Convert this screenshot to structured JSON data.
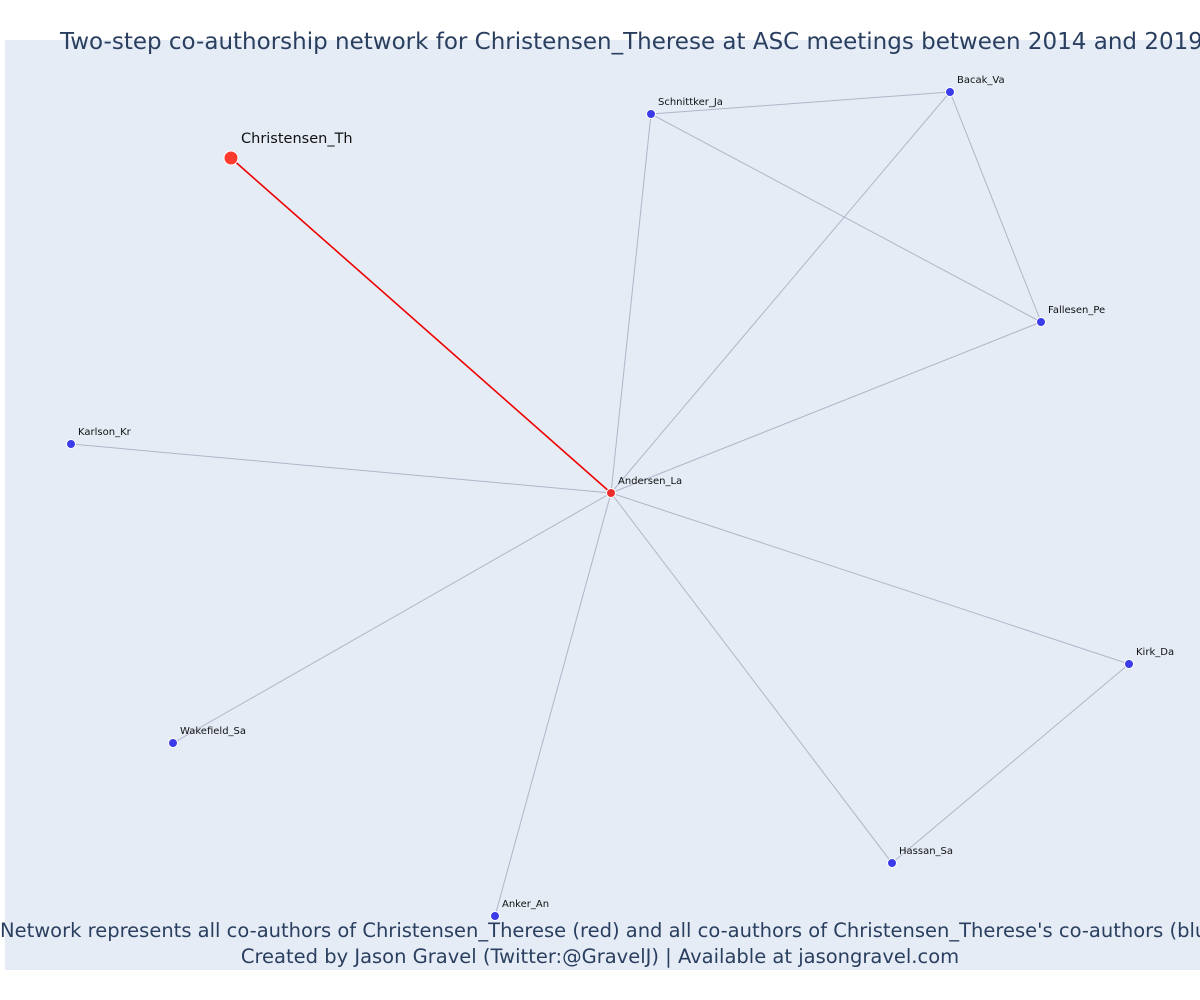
{
  "title": "Two-step co-authorship network for Christensen_Therese at ASC meetings between 2014 and 2019",
  "caption": {
    "line1": "Network represents all co-authors of Christensen_Therese (red) and all co-authors of Christensen_Therese's co-authors (blue)",
    "line2": "Created by Jason Gravel (Twitter:@GravelJ) | Available at jasongravel.com"
  },
  "colors": {
    "plot_background": "#e5ecf6",
    "focal_node": "#ff3b30",
    "first_degree_node": "#ee2d2d",
    "second_degree_node": "#3b3bea",
    "focal_edge": "#ee0000",
    "other_edge": "#b4b4c8",
    "text": "#2a3f5f"
  },
  "nodes": [
    {
      "id": "Christensen_Th",
      "label": "Christensen_Th",
      "group": "focal"
    },
    {
      "id": "Andersen_La",
      "label": "Andersen_La",
      "group": "first-degree"
    },
    {
      "id": "Schnittker_Ja",
      "label": "Schnittker_Ja",
      "group": "second-degree"
    },
    {
      "id": "Bacak_Va",
      "label": "Bacak_Va",
      "group": "second-degree"
    },
    {
      "id": "Fallesen_Pe",
      "label": "Fallesen_Pe",
      "group": "second-degree"
    },
    {
      "id": "Karlson_Kr",
      "label": "Karlson_Kr",
      "group": "second-degree"
    },
    {
      "id": "Kirk_Da",
      "label": "Kirk_Da",
      "group": "second-degree"
    },
    {
      "id": "Wakefield_Sa",
      "label": "Wakefield_Sa",
      "group": "second-degree"
    },
    {
      "id": "Hassan_Sa",
      "label": "Hassan_Sa",
      "group": "second-degree"
    },
    {
      "id": "Anker_An",
      "label": "Anker_An",
      "group": "second-degree"
    }
  ],
  "edges": [
    {
      "source": "Christensen_Th",
      "target": "Andersen_La",
      "type": "focal"
    },
    {
      "source": "Andersen_La",
      "target": "Schnittker_Ja",
      "type": "other"
    },
    {
      "source": "Andersen_La",
      "target": "Bacak_Va",
      "type": "other"
    },
    {
      "source": "Andersen_La",
      "target": "Fallesen_Pe",
      "type": "other"
    },
    {
      "source": "Andersen_La",
      "target": "Karlson_Kr",
      "type": "other"
    },
    {
      "source": "Andersen_La",
      "target": "Kirk_Da",
      "type": "other"
    },
    {
      "source": "Andersen_La",
      "target": "Wakefield_Sa",
      "type": "other"
    },
    {
      "source": "Andersen_La",
      "target": "Hassan_Sa",
      "type": "other"
    },
    {
      "source": "Andersen_La",
      "target": "Anker_An",
      "type": "other"
    },
    {
      "source": "Schnittker_Ja",
      "target": "Bacak_Va",
      "type": "other"
    },
    {
      "source": "Schnittker_Ja",
      "target": "Fallesen_Pe",
      "type": "other"
    },
    {
      "source": "Bacak_Va",
      "target": "Fallesen_Pe",
      "type": "other"
    },
    {
      "source": "Kirk_Da",
      "target": "Hassan_Sa",
      "type": "other"
    }
  ]
}
